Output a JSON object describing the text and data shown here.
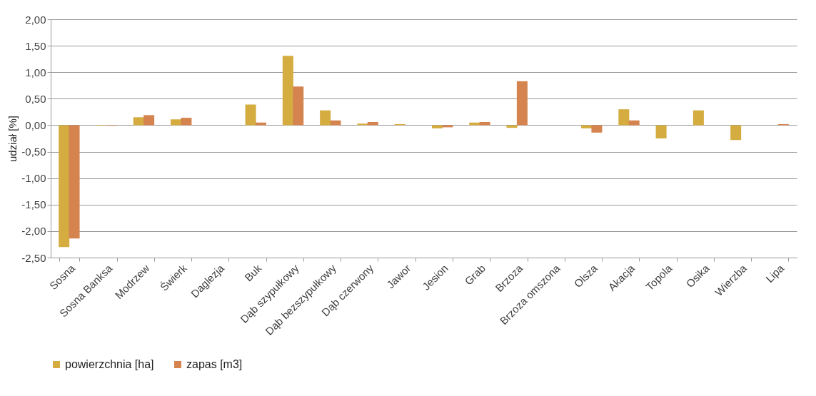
{
  "chart_data": {
    "type": "bar",
    "ylabel": "udział [%]",
    "categories": [
      "Sosna",
      "Sosna Banksa",
      "Modrzew",
      "Świerk",
      "Daglezja",
      "Buk",
      "Dąb szypułkowy",
      "Dąb bezszypułkowy",
      "Dąb czerwony",
      "Jawor",
      "Jesion",
      "Grab",
      "Brzoza",
      "Brzoza omszona",
      "Olsza",
      "Akacja",
      "Topola",
      "Osika",
      "Wierzba",
      "Lipa"
    ],
    "series": [
      {
        "name": "powierzchnia [ha]",
        "color": "#d4ac40",
        "values": [
          -2.3,
          -0.01,
          0.15,
          0.11,
          0.0,
          0.39,
          1.31,
          0.28,
          0.03,
          0.02,
          -0.06,
          0.05,
          -0.05,
          0.0,
          -0.06,
          0.3,
          -0.25,
          0.28,
          -0.28,
          0.0
        ]
      },
      {
        "name": "zapas [m3]",
        "color": "#d5834f",
        "values": [
          -2.14,
          -0.01,
          0.19,
          0.14,
          0.0,
          0.05,
          0.73,
          0.09,
          0.06,
          0.0,
          -0.04,
          0.06,
          0.83,
          0.0,
          -0.14,
          0.09,
          0.0,
          0.0,
          0.0,
          0.02
        ]
      }
    ],
    "ylim": [
      -2.5,
      2.0
    ],
    "yticks": [
      {
        "value": 2.0,
        "label": "2,00"
      },
      {
        "value": 1.5,
        "label": "1,50"
      },
      {
        "value": 1.0,
        "label": "1,00"
      },
      {
        "value": 0.5,
        "label": "0,50"
      },
      {
        "value": 0,
        "label": "0,00"
      },
      {
        "value": -0.5,
        "label": "-0,50"
      },
      {
        "value": -1.0,
        "label": "-1,00"
      },
      {
        "value": -1.5,
        "label": "-1,50"
      },
      {
        "value": -2.0,
        "label": "-2,00"
      },
      {
        "value": -2.5,
        "label": "-2,50"
      }
    ],
    "grid": "y",
    "legend": "bottom"
  }
}
